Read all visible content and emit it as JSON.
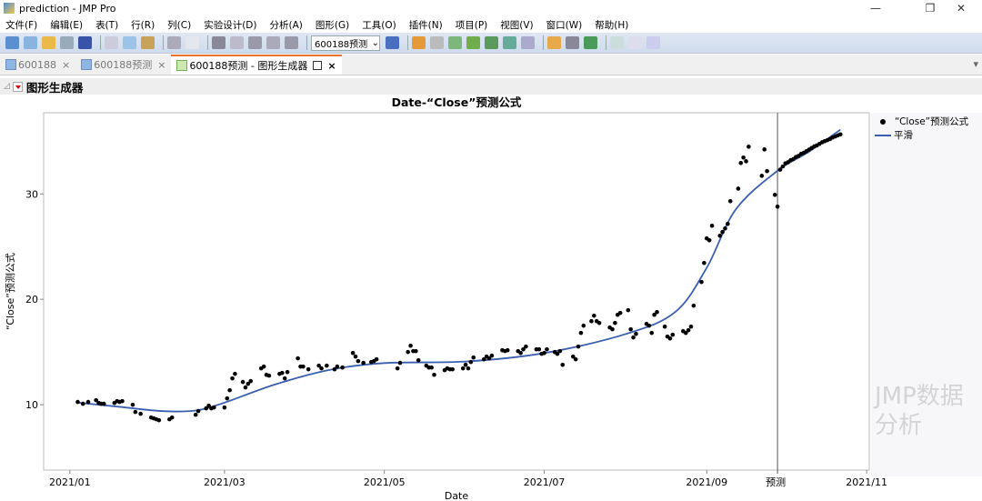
{
  "window": {
    "title": "prediction - JMP Pro",
    "controls": [
      "—",
      "❐",
      "✕"
    ]
  },
  "menu": [
    "文件(F)",
    "编辑(E)",
    "表(T)",
    "行(R)",
    "列(C)",
    "实验设计(D)",
    "分析(A)",
    "图形(G)",
    "工具(O)",
    "插件(N)",
    "项目(P)",
    "视图(V)",
    "窗口(W)",
    "帮助(H)"
  ],
  "toolbar": {
    "table_combo": "600188预测"
  },
  "tabs": [
    {
      "label": "600188",
      "active": false
    },
    {
      "label": "600188预测",
      "active": false
    },
    {
      "label": "600188预测 - 图形生成器",
      "active": true
    }
  ],
  "outline": {
    "title": "图形生成器"
  },
  "watermark": "JMP数据分析",
  "colors": {
    "points": "#000000",
    "smooth": "#3a5fb0",
    "toolbar": "#d6e0ee",
    "tab_accent": "#e8742e"
  },
  "chart_data": {
    "type": "scatter",
    "title": "Date-“Close”预测公式",
    "xlabel": "Date",
    "ylabel": "“Close”预测公式",
    "xlim": [
      "2020-12-22",
      "2021-11-02"
    ],
    "ylim": [
      3.8,
      37.7
    ],
    "x_ticks": [
      "2021/01",
      "2021/03",
      "2021/05",
      "2021/07",
      "2021/09",
      "2021/11"
    ],
    "x_tick_dates": [
      "2021-01-01",
      "2021-03-01",
      "2021-05-01",
      "2021-07-01",
      "2021-09-01",
      "2021-11-01"
    ],
    "y_ticks": [
      10,
      20,
      30
    ],
    "grid": false,
    "legend_placement": "right",
    "reference_line": {
      "date": "2021-09-28",
      "label": "预测"
    },
    "series": [
      {
        "name": "“Close”预测公式",
        "kind": "points",
        "data": [
          [
            "2021-01-04",
            10.26
          ],
          [
            "2021-01-06",
            10.09
          ],
          [
            "2021-01-08",
            10.26
          ],
          [
            "2021-01-11",
            10.43
          ],
          [
            "2021-01-12",
            10.17
          ],
          [
            "2021-01-13",
            10.09
          ],
          [
            "2021-01-14",
            10.09
          ],
          [
            "2021-01-18",
            10.17
          ],
          [
            "2021-01-19",
            10.34
          ],
          [
            "2021-01-20",
            10.26
          ],
          [
            "2021-01-21",
            10.34
          ],
          [
            "2021-01-25",
            10.0
          ],
          [
            "2021-01-26",
            9.31
          ],
          [
            "2021-01-28",
            9.14
          ],
          [
            "2021-02-01",
            8.79
          ],
          [
            "2021-02-02",
            8.71
          ],
          [
            "2021-02-03",
            8.62
          ],
          [
            "2021-02-04",
            8.53
          ],
          [
            "2021-02-08",
            8.62
          ],
          [
            "2021-02-09",
            8.79
          ],
          [
            "2021-02-18",
            9.05
          ],
          [
            "2021-02-19",
            9.4
          ],
          [
            "2021-02-22",
            9.66
          ],
          [
            "2021-02-23",
            9.91
          ],
          [
            "2021-02-24",
            9.66
          ],
          [
            "2021-02-25",
            9.74
          ],
          [
            "2021-03-01",
            9.74
          ],
          [
            "2021-03-02",
            10.6
          ],
          [
            "2021-03-03",
            11.38
          ],
          [
            "2021-03-04",
            12.5
          ],
          [
            "2021-03-05",
            12.93
          ],
          [
            "2021-03-08",
            12.16
          ],
          [
            "2021-03-09",
            11.64
          ],
          [
            "2021-03-10",
            11.98
          ],
          [
            "2021-03-11",
            12.24
          ],
          [
            "2021-03-15",
            13.45
          ],
          [
            "2021-03-16",
            13.62
          ],
          [
            "2021-03-17",
            12.84
          ],
          [
            "2021-03-18",
            12.76
          ],
          [
            "2021-03-22",
            12.93
          ],
          [
            "2021-03-23",
            13.02
          ],
          [
            "2021-03-24",
            12.5
          ],
          [
            "2021-03-25",
            13.1
          ],
          [
            "2021-03-29",
            14.4
          ],
          [
            "2021-03-30",
            13.62
          ],
          [
            "2021-03-31",
            13.62
          ],
          [
            "2021-04-02",
            13.36
          ],
          [
            "2021-04-06",
            13.71
          ],
          [
            "2021-04-07",
            13.45
          ],
          [
            "2021-04-09",
            13.71
          ],
          [
            "2021-04-12",
            13.36
          ],
          [
            "2021-04-13",
            13.62
          ],
          [
            "2021-04-15",
            13.53
          ],
          [
            "2021-04-19",
            14.91
          ],
          [
            "2021-04-20",
            14.57
          ],
          [
            "2021-04-21",
            14.14
          ],
          [
            "2021-04-23",
            13.97
          ],
          [
            "2021-04-26",
            14.05
          ],
          [
            "2021-04-27",
            14.14
          ],
          [
            "2021-04-28",
            14.31
          ],
          [
            "2021-05-06",
            13.45
          ],
          [
            "2021-05-07",
            13.97
          ],
          [
            "2021-05-10",
            15.0
          ],
          [
            "2021-05-11",
            15.6
          ],
          [
            "2021-05-12",
            15.09
          ],
          [
            "2021-05-13",
            15.09
          ],
          [
            "2021-05-14",
            14.22
          ],
          [
            "2021-05-17",
            13.71
          ],
          [
            "2021-05-18",
            13.53
          ],
          [
            "2021-05-19",
            13.53
          ],
          [
            "2021-05-20",
            12.84
          ],
          [
            "2021-05-24",
            13.28
          ],
          [
            "2021-05-25",
            13.45
          ],
          [
            "2021-05-26",
            13.36
          ],
          [
            "2021-05-27",
            13.36
          ],
          [
            "2021-05-31",
            13.45
          ],
          [
            "2021-06-01",
            13.79
          ],
          [
            "2021-06-02",
            13.45
          ],
          [
            "2021-06-03",
            14.05
          ],
          [
            "2021-06-04",
            14.48
          ],
          [
            "2021-06-08",
            14.31
          ],
          [
            "2021-06-09",
            14.57
          ],
          [
            "2021-06-10",
            14.4
          ],
          [
            "2021-06-11",
            14.66
          ],
          [
            "2021-06-15",
            15.17
          ],
          [
            "2021-06-16",
            15.09
          ],
          [
            "2021-06-17",
            15.17
          ],
          [
            "2021-06-21",
            15.09
          ],
          [
            "2021-06-22",
            14.91
          ],
          [
            "2021-06-23",
            15.26
          ],
          [
            "2021-06-24",
            15.52
          ],
          [
            "2021-06-28",
            15.26
          ],
          [
            "2021-06-29",
            15.26
          ],
          [
            "2021-06-30",
            14.83
          ],
          [
            "2021-07-01",
            14.91
          ],
          [
            "2021-07-02",
            15.26
          ],
          [
            "2021-07-05",
            15.0
          ],
          [
            "2021-07-06",
            14.83
          ],
          [
            "2021-07-07",
            15.09
          ],
          [
            "2021-07-08",
            13.79
          ],
          [
            "2021-07-12",
            14.57
          ],
          [
            "2021-07-13",
            14.31
          ],
          [
            "2021-07-14",
            15.52
          ],
          [
            "2021-07-15",
            16.81
          ],
          [
            "2021-07-16",
            17.5
          ],
          [
            "2021-07-19",
            17.93
          ],
          [
            "2021-07-20",
            18.45
          ],
          [
            "2021-07-21",
            17.93
          ],
          [
            "2021-07-22",
            17.76
          ],
          [
            "2021-07-26",
            17.33
          ],
          [
            "2021-07-27",
            17.16
          ],
          [
            "2021-07-28",
            17.76
          ],
          [
            "2021-07-29",
            18.53
          ],
          [
            "2021-07-30",
            18.71
          ],
          [
            "2021-08-02",
            18.97
          ],
          [
            "2021-08-03",
            17.16
          ],
          [
            "2021-08-04",
            16.38
          ],
          [
            "2021-08-05",
            16.72
          ],
          [
            "2021-08-09",
            17.67
          ],
          [
            "2021-08-10",
            17.5
          ],
          [
            "2021-08-11",
            16.81
          ],
          [
            "2021-08-12",
            18.53
          ],
          [
            "2021-08-13",
            18.79
          ],
          [
            "2021-08-16",
            17.41
          ],
          [
            "2021-08-17",
            16.47
          ],
          [
            "2021-08-18",
            16.29
          ],
          [
            "2021-08-19",
            16.64
          ],
          [
            "2021-08-23",
            16.98
          ],
          [
            "2021-08-24",
            16.81
          ],
          [
            "2021-08-25",
            17.07
          ],
          [
            "2021-08-26",
            17.41
          ],
          [
            "2021-08-27",
            19.4
          ],
          [
            "2021-08-30",
            21.64
          ],
          [
            "2021-08-31",
            23.45
          ],
          [
            "2021-09-01",
            25.78
          ],
          [
            "2021-09-02",
            25.6
          ],
          [
            "2021-09-03",
            26.98
          ],
          [
            "2021-09-06",
            26.03
          ],
          [
            "2021-09-07",
            26.38
          ],
          [
            "2021-09-08",
            26.72
          ],
          [
            "2021-09-09",
            27.16
          ],
          [
            "2021-09-10",
            29.31
          ],
          [
            "2021-09-13",
            30.5
          ],
          [
            "2021-09-14",
            32.93
          ],
          [
            "2021-09-15",
            33.45
          ],
          [
            "2021-09-16",
            33.1
          ],
          [
            "2021-09-17",
            34.48
          ],
          [
            "2021-09-22",
            31.72
          ],
          [
            "2021-09-23",
            34.22
          ],
          [
            "2021-09-24",
            32.16
          ],
          [
            "2021-09-27",
            29.91
          ],
          [
            "2021-09-28",
            28.79
          ],
          [
            "2021-09-29",
            32.3
          ],
          [
            "2021-09-30",
            32.6
          ],
          [
            "2021-10-01",
            32.9
          ],
          [
            "2021-10-02",
            33.0
          ],
          [
            "2021-10-03",
            33.2
          ],
          [
            "2021-10-04",
            33.3
          ],
          [
            "2021-10-05",
            33.5
          ],
          [
            "2021-10-06",
            33.6
          ],
          [
            "2021-10-07",
            33.8
          ],
          [
            "2021-10-08",
            33.9
          ],
          [
            "2021-10-09",
            34.05
          ],
          [
            "2021-10-10",
            34.2
          ],
          [
            "2021-10-11",
            34.35
          ],
          [
            "2021-10-12",
            34.5
          ],
          [
            "2021-10-13",
            34.6
          ],
          [
            "2021-10-14",
            34.75
          ],
          [
            "2021-10-15",
            34.9
          ],
          [
            "2021-10-16",
            35.0
          ],
          [
            "2021-10-17",
            35.1
          ],
          [
            "2021-10-18",
            35.2
          ],
          [
            "2021-10-19",
            35.35
          ],
          [
            "2021-10-20",
            35.45
          ],
          [
            "2021-10-21",
            35.55
          ],
          [
            "2021-10-22",
            35.65
          ]
        ]
      },
      {
        "name": "平滑",
        "kind": "line",
        "data": [
          [
            "2021-01-04",
            10.2
          ],
          [
            "2021-01-20",
            9.8
          ],
          [
            "2021-02-05",
            9.4
          ],
          [
            "2021-02-18",
            9.45
          ],
          [
            "2021-03-01",
            10.2
          ],
          [
            "2021-03-20",
            11.9
          ],
          [
            "2021-04-10",
            13.3
          ],
          [
            "2021-05-01",
            13.95
          ],
          [
            "2021-06-01",
            14.1
          ],
          [
            "2021-07-01",
            14.9
          ],
          [
            "2021-08-01",
            16.7
          ],
          [
            "2021-08-20",
            18.8
          ],
          [
            "2021-09-01",
            23.0
          ],
          [
            "2021-09-12",
            28.5
          ],
          [
            "2021-09-28",
            32.2
          ],
          [
            "2021-10-10",
            34.0
          ],
          [
            "2021-10-22",
            36.1
          ]
        ]
      }
    ]
  }
}
